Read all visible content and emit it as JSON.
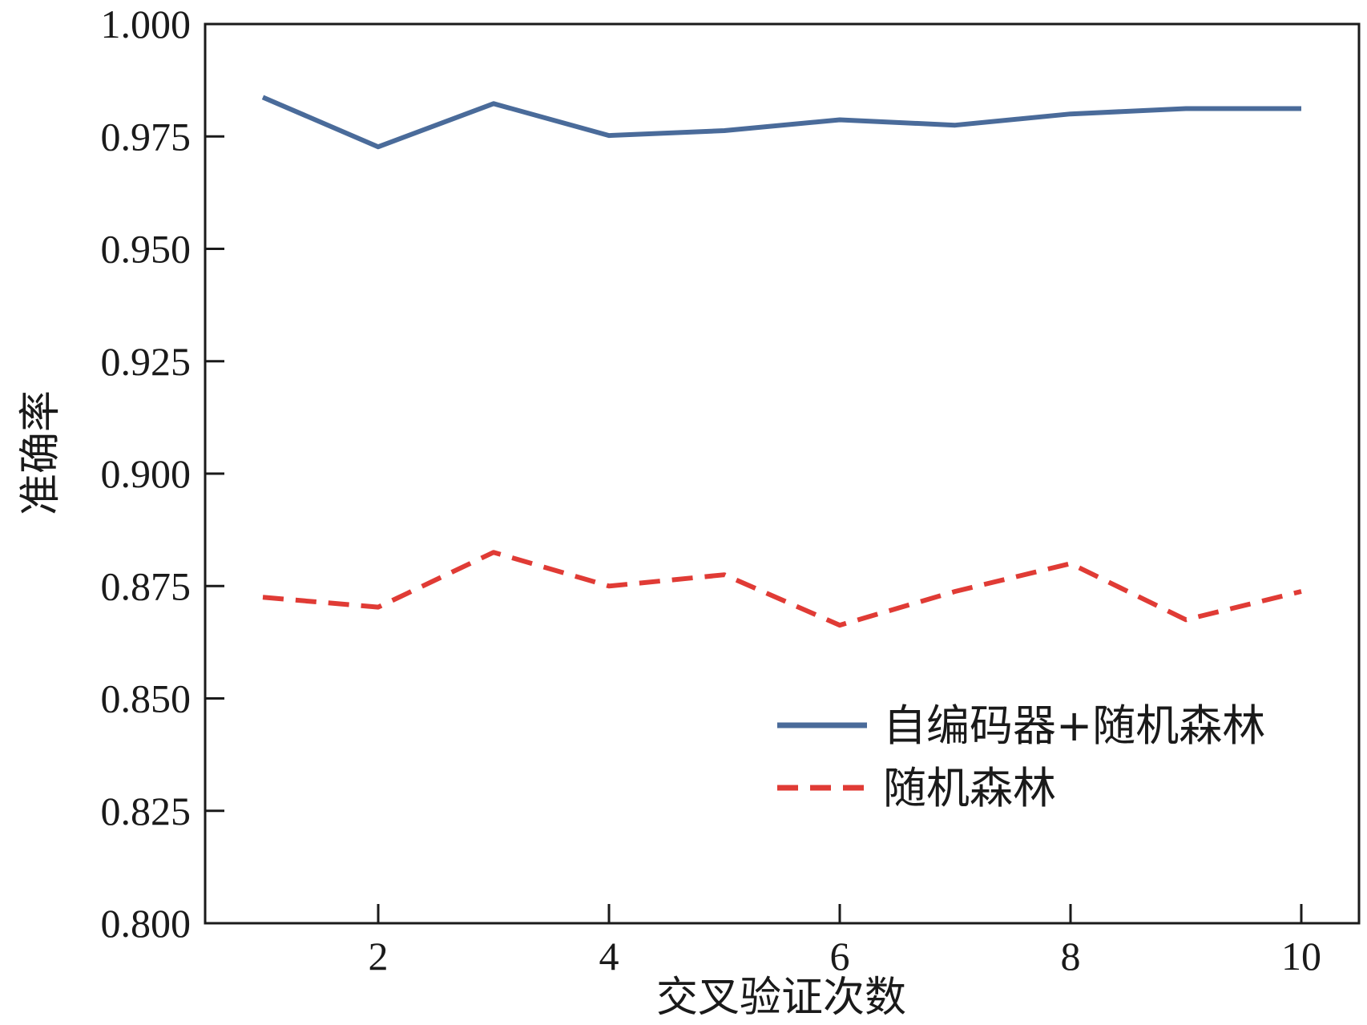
{
  "chart_data": {
    "type": "line",
    "xlabel": "交叉验证次数",
    "ylabel": "准确率",
    "x": [
      1,
      2,
      3,
      4,
      5,
      6,
      7,
      8,
      9,
      10
    ],
    "xlim": [
      0.5,
      10.5
    ],
    "ylim": [
      0.8,
      1.0
    ],
    "xticks": [
      2,
      4,
      6,
      8,
      10
    ],
    "yticks": [
      0.8,
      0.825,
      0.85,
      0.875,
      0.9,
      0.925,
      0.95,
      0.975,
      1.0
    ],
    "ytick_labels": [
      "0.800",
      "0.825",
      "0.850",
      "0.875",
      "0.900",
      "0.925",
      "0.950",
      "0.975",
      "1.000"
    ],
    "grid": false,
    "legend_position": "lower-right",
    "series": [
      {
        "name": "自编码器+随机森林",
        "color": "#4a6b9a",
        "style": "solid",
        "values": [
          0.9837,
          0.9727,
          0.9823,
          0.9752,
          0.9763,
          0.9787,
          0.9775,
          0.98,
          0.9812,
          0.9812
        ]
      },
      {
        "name": "随机森林",
        "color": "#e03b35",
        "style": "dashed",
        "values": [
          0.8725,
          0.8703,
          0.8825,
          0.875,
          0.8775,
          0.8663,
          0.8738,
          0.88,
          0.8675,
          0.8738
        ]
      }
    ]
  }
}
